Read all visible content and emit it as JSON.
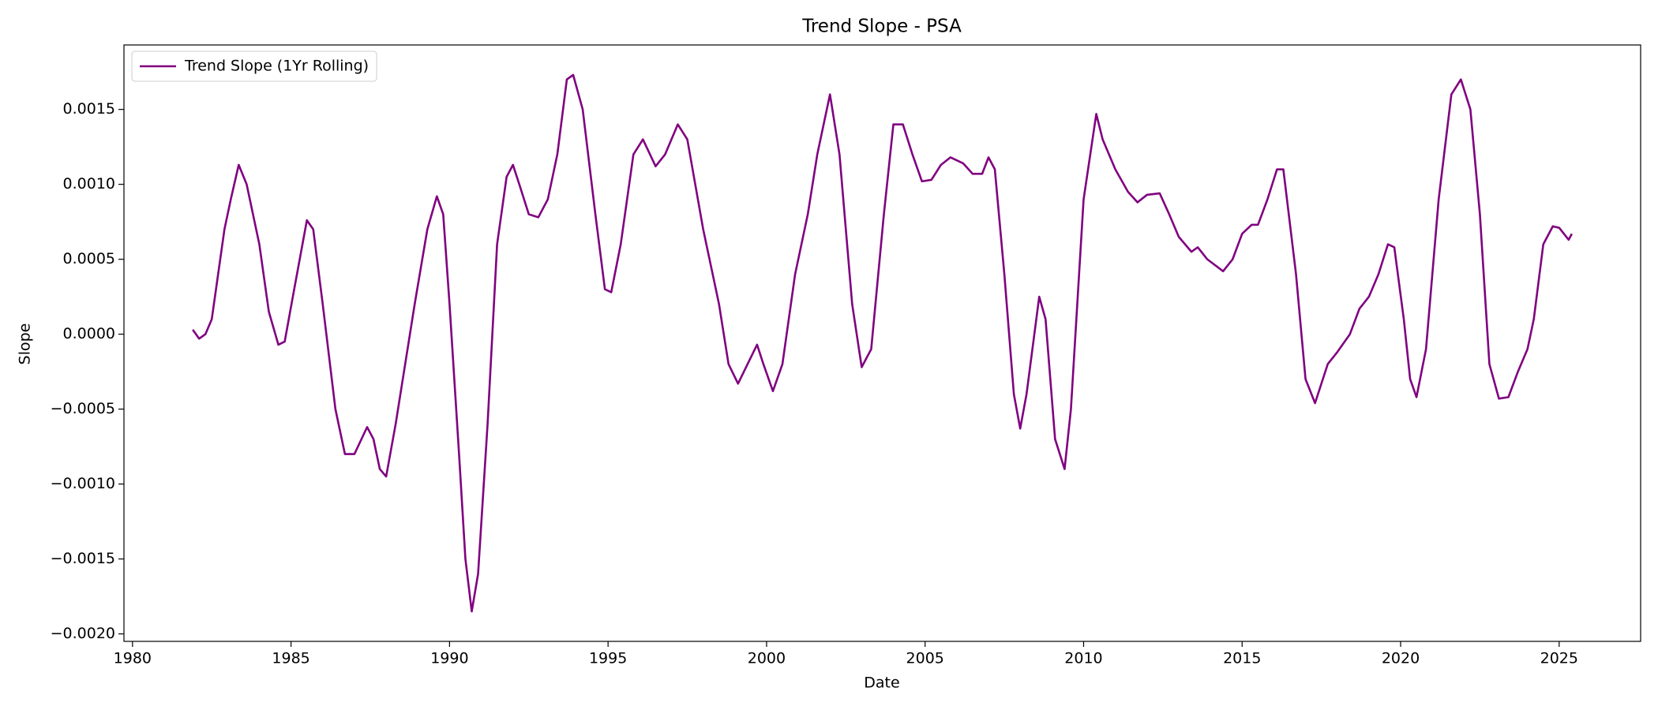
{
  "chart_data": {
    "type": "line",
    "title": "Trend Slope - PSA",
    "x_label": "Date",
    "y_label": "Slope",
    "xlim": [
      1979.73,
      2027.57
    ],
    "ylim": [
      -0.00205,
      0.00193
    ],
    "xticks": [
      1980,
      1985,
      1990,
      1995,
      2000,
      2005,
      2010,
      2015,
      2020,
      2025
    ],
    "yticks": [
      {
        "value": -0.002,
        "label": "−0.0020"
      },
      {
        "value": -0.0015,
        "label": "−0.0015"
      },
      {
        "value": -0.001,
        "label": "−0.0010"
      },
      {
        "value": -0.0005,
        "label": "−0.0005"
      },
      {
        "value": 0,
        "label": "0.0000"
      },
      {
        "value": 0.0005,
        "label": "0.0005"
      },
      {
        "value": 0.001,
        "label": "0.0010"
      },
      {
        "value": 0.0015,
        "label": "0.0015"
      }
    ],
    "legend": "upper left",
    "grid": false,
    "x": [
      1981.9,
      1982.1,
      1982.3,
      1982.5,
      1982.9,
      1983.1,
      1983.35,
      1983.6,
      1984.0,
      1984.3,
      1984.6,
      1984.8,
      1985.1,
      1985.5,
      1985.7,
      1986.0,
      1986.4,
      1986.7,
      1987.0,
      1987.4,
      1987.6,
      1987.8,
      1988.0,
      1988.3,
      1988.9,
      1989.3,
      1989.6,
      1989.8,
      1990.0,
      1990.3,
      1990.5,
      1990.7,
      1990.9,
      1991.2,
      1991.5,
      1991.8,
      1992.0,
      1992.2,
      1992.5,
      1992.8,
      1993.1,
      1993.4,
      1993.7,
      1993.9,
      1994.2,
      1994.6,
      1994.9,
      1995.1,
      1995.4,
      1995.8,
      1996.1,
      1996.5,
      1996.8,
      1997.2,
      1997.5,
      1998.0,
      1998.5,
      1998.8,
      1999.1,
      1999.4,
      1999.7,
      1999.9,
      2000.2,
      2000.5,
      2000.9,
      2001.3,
      2001.6,
      2002.0,
      2002.3,
      2002.7,
      2003.0,
      2003.3,
      2003.7,
      2004.0,
      2004.3,
      2004.6,
      2004.9,
      2005.2,
      2005.5,
      2005.8,
      2006.2,
      2006.5,
      2006.8,
      2007.0,
      2007.2,
      2007.5,
      2007.8,
      2008.0,
      2008.2,
      2008.6,
      2008.8,
      2009.1,
      2009.4,
      2009.6,
      2010.0,
      2010.4,
      2010.6,
      2011.0,
      2011.4,
      2011.7,
      2012.0,
      2012.4,
      2012.7,
      2013.0,
      2013.4,
      2013.6,
      2013.9,
      2014.4,
      2014.7,
      2015.0,
      2015.3,
      2015.5,
      2015.8,
      2016.1,
      2016.3,
      2016.7,
      2017.0,
      2017.3,
      2017.7,
      2018.0,
      2018.4,
      2018.7,
      2019.0,
      2019.3,
      2019.6,
      2019.8,
      2020.1,
      2020.3,
      2020.5,
      2020.8,
      2021.2,
      2021.6,
      2021.9,
      2022.2,
      2022.5,
      2022.8,
      2023.1,
      2023.4,
      2023.7,
      2024.0,
      2024.2,
      2024.5,
      2024.8,
      2025.0,
      2025.3,
      2025.4
    ],
    "series": [
      {
        "name": "Trend Slope (1Yr Rolling)",
        "color": "#800080",
        "values": [
          3e-05,
          -3e-05,
          0.0,
          0.0001,
          0.0007,
          0.0009,
          0.00113,
          0.001,
          0.0006,
          0.00015,
          -7e-05,
          -5e-05,
          0.0003,
          0.00076,
          0.0007,
          0.0002,
          -0.0005,
          -0.0008,
          -0.0008,
          -0.00062,
          -0.0007,
          -0.0009,
          -0.00095,
          -0.0006,
          0.0002,
          0.0007,
          0.00092,
          0.0008,
          0.0002,
          -0.0008,
          -0.0015,
          -0.00185,
          -0.0016,
          -0.0006,
          0.0006,
          0.00105,
          0.00113,
          0.001,
          0.0008,
          0.00078,
          0.0009,
          0.0012,
          0.0017,
          0.00173,
          0.0015,
          0.0008,
          0.0003,
          0.00028,
          0.0006,
          0.0012,
          0.0013,
          0.00112,
          0.0012,
          0.0014,
          0.0013,
          0.0007,
          0.0002,
          -0.0002,
          -0.00033,
          -0.0002,
          -7e-05,
          -0.0002,
          -0.00038,
          -0.0002,
          0.0004,
          0.0008,
          0.0012,
          0.0016,
          0.0012,
          0.0002,
          -0.00022,
          -0.0001,
          0.0008,
          0.0014,
          0.0014,
          0.0012,
          0.00102,
          0.00103,
          0.00113,
          0.00118,
          0.00114,
          0.00107,
          0.00107,
          0.00118,
          0.0011,
          0.0004,
          -0.0004,
          -0.00063,
          -0.0004,
          0.00025,
          0.0001,
          -0.0007,
          -0.0009,
          -0.0005,
          0.0009,
          0.00147,
          0.0013,
          0.0011,
          0.00095,
          0.00088,
          0.00093,
          0.00094,
          0.0008,
          0.00065,
          0.00055,
          0.00058,
          0.0005,
          0.00042,
          0.0005,
          0.00067,
          0.00073,
          0.00073,
          0.0009,
          0.0011,
          0.0011,
          0.0004,
          -0.0003,
          -0.00046,
          -0.0002,
          -0.00012,
          0.0,
          0.00017,
          0.00025,
          0.0004,
          0.0006,
          0.00058,
          0.0001,
          -0.0003,
          -0.00042,
          -0.0001,
          0.0009,
          0.0016,
          0.0017,
          0.0015,
          0.0008,
          -0.0002,
          -0.00043,
          -0.00042,
          -0.00025,
          -0.0001,
          0.0001,
          0.0006,
          0.00072,
          0.00071,
          0.00063,
          0.00067
        ]
      }
    ]
  }
}
